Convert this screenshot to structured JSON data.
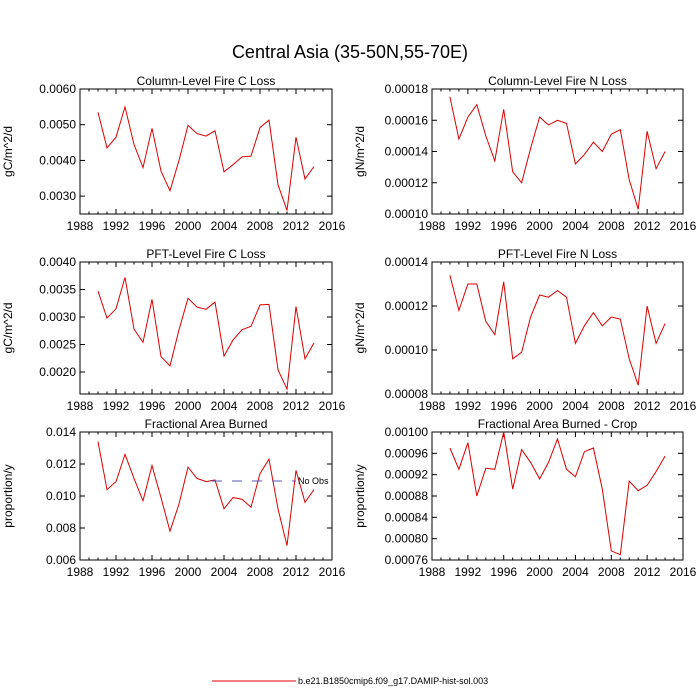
{
  "figure": {
    "title": "Central Asia (35-50N,55-70E)"
  },
  "legend": {
    "entries": [
      {
        "label": "No Obs",
        "style": "dashed",
        "color": "#5555bb"
      },
      {
        "label": "b.e21.B1850cmip6.f09_g17.DAMIP-hist-sol.003",
        "style": "solid",
        "color": "#dd0000"
      }
    ]
  },
  "chart_data": [
    {
      "type": "line",
      "title": "Column-Level Fire C Loss",
      "ylabel": "gC/m^2/d",
      "xlim": [
        1988,
        2016
      ],
      "ylim": [
        0.0025,
        0.006
      ],
      "xticks": [
        "1988",
        "1992",
        "1996",
        "2000",
        "2004",
        "2008",
        "2012",
        "2016"
      ],
      "yticks": [
        "0.0030",
        "0.0040",
        "0.0050",
        "0.0060"
      ],
      "ytick_values": [
        0.003,
        0.004,
        0.005,
        0.006
      ],
      "series": [
        {
          "color": "#dd0000",
          "x": [
            1990,
            1991,
            1992,
            1993,
            1994,
            1995,
            1996,
            1997,
            1998,
            1999,
            2000,
            2001,
            2002,
            2003,
            2004,
            2005,
            2006,
            2007,
            2008,
            2009,
            2010,
            2011,
            2012,
            2013,
            2014
          ],
          "values": [
            0.00535,
            0.00435,
            0.00465,
            0.0055,
            0.00445,
            0.0038,
            0.0049,
            0.0037,
            0.00315,
            0.004,
            0.00498,
            0.00475,
            0.00468,
            0.00483,
            0.00368,
            0.00388,
            0.0041,
            0.00412,
            0.00492,
            0.00513,
            0.00332,
            0.0026,
            0.00465,
            0.00348,
            0.00383
          ]
        }
      ]
    },
    {
      "type": "line",
      "title": "Column-Level Fire N Loss",
      "ylabel": "gN/m^2/d",
      "xlim": [
        1988,
        2016
      ],
      "ylim": [
        0.0001,
        0.00018
      ],
      "xticks": [
        "1988",
        "1992",
        "1996",
        "2000",
        "2004",
        "2008",
        "2012",
        "2016"
      ],
      "yticks": [
        "0.00010",
        "0.00012",
        "0.00014",
        "0.00016",
        "0.00018"
      ],
      "ytick_values": [
        0.0001,
        0.00012,
        0.00014,
        0.00016,
        0.00018
      ],
      "series": [
        {
          "color": "#dd0000",
          "x": [
            1990,
            1991,
            1992,
            1993,
            1994,
            1995,
            1996,
            1997,
            1998,
            1999,
            2000,
            2001,
            2002,
            2003,
            2004,
            2005,
            2006,
            2007,
            2008,
            2009,
            2010,
            2011,
            2012,
            2013,
            2014
          ],
          "values": [
            0.000175,
            0.000148,
            0.000162,
            0.00017,
            0.00015,
            0.000134,
            0.000167,
            0.000127,
            0.00012,
            0.000142,
            0.000162,
            0.000157,
            0.00016,
            0.000158,
            0.000132,
            0.000138,
            0.000146,
            0.00014,
            0.000151,
            0.000154,
            0.000122,
            0.000103,
            0.000153,
            0.000129,
            0.00014
          ]
        }
      ]
    },
    {
      "type": "line",
      "title": "PFT-Level Fire C Loss",
      "ylabel": "gC/m^2/d",
      "xlim": [
        1988,
        2016
      ],
      "ylim": [
        0.0016,
        0.004
      ],
      "xticks": [
        "1988",
        "1992",
        "1996",
        "2000",
        "2004",
        "2008",
        "2012",
        "2016"
      ],
      "yticks": [
        "0.0020",
        "0.0025",
        "0.0030",
        "0.0035",
        "0.0040"
      ],
      "ytick_values": [
        0.002,
        0.0025,
        0.003,
        0.0035,
        0.004
      ],
      "series": [
        {
          "color": "#dd0000",
          "x": [
            1990,
            1991,
            1992,
            1993,
            1994,
            1995,
            1996,
            1997,
            1998,
            1999,
            2000,
            2001,
            2002,
            2003,
            2004,
            2005,
            2006,
            2007,
            2008,
            2009,
            2010,
            2011,
            2012,
            2013,
            2014
          ],
          "values": [
            0.00347,
            0.00298,
            0.00315,
            0.00372,
            0.00278,
            0.00254,
            0.00332,
            0.00228,
            0.00211,
            0.00277,
            0.00334,
            0.00318,
            0.00314,
            0.00327,
            0.00229,
            0.00258,
            0.00277,
            0.00283,
            0.00322,
            0.00323,
            0.00204,
            0.00169,
            0.00319,
            0.00224,
            0.00253
          ]
        }
      ]
    },
    {
      "type": "line",
      "title": "PFT-Level Fire N Loss",
      "ylabel": "gN/m^2/d",
      "xlim": [
        1988,
        2016
      ],
      "ylim": [
        8e-05,
        0.00014
      ],
      "xticks": [
        "1988",
        "1992",
        "1996",
        "2000",
        "2004",
        "2008",
        "2012",
        "2016"
      ],
      "yticks": [
        "0.00008",
        "0.00010",
        "0.00012",
        "0.00014"
      ],
      "ytick_values": [
        8e-05,
        0.0001,
        0.00012,
        0.00014
      ],
      "series": [
        {
          "color": "#dd0000",
          "x": [
            1990,
            1991,
            1992,
            1993,
            1994,
            1995,
            1996,
            1997,
            1998,
            1999,
            2000,
            2001,
            2002,
            2003,
            2004,
            2005,
            2006,
            2007,
            2008,
            2009,
            2010,
            2011,
            2012,
            2013,
            2014
          ],
          "values": [
            0.000134,
            0.000118,
            0.00013,
            0.00013,
            0.000113,
            0.000107,
            0.000131,
            9.6e-05,
            9.9e-05,
            0.000115,
            0.000125,
            0.000124,
            0.000127,
            0.000124,
            0.000103,
            0.000111,
            0.000117,
            0.000111,
            0.000115,
            0.000114,
            9.6e-05,
            8.4e-05,
            0.00012,
            0.000103,
            0.000112
          ]
        }
      ]
    },
    {
      "type": "line",
      "title": "Fractional Area Burned",
      "ylabel": "proportion/y",
      "xlim": [
        1988,
        2016
      ],
      "ylim": [
        0.006,
        0.014
      ],
      "xticks": [
        "1988",
        "1992",
        "1996",
        "2000",
        "2004",
        "2008",
        "2012",
        "2016"
      ],
      "yticks": [
        "0.006",
        "0.008",
        "0.010",
        "0.012",
        "0.014"
      ],
      "ytick_values": [
        0.006,
        0.008,
        0.01,
        0.012,
        0.014
      ],
      "series": [
        {
          "color": "#dd0000",
          "x": [
            1990,
            1991,
            1992,
            1993,
            1994,
            1995,
            1996,
            1997,
            1998,
            1999,
            2000,
            2001,
            2002,
            2003,
            2004,
            2005,
            2006,
            2007,
            2008,
            2009,
            2010,
            2011,
            2012,
            2013,
            2014
          ],
          "values": [
            0.0134,
            0.0104,
            0.0109,
            0.0126,
            0.0111,
            0.0097,
            0.0119,
            0.0099,
            0.0078,
            0.0095,
            0.0118,
            0.0111,
            0.0109,
            0.011,
            0.0092,
            0.0099,
            0.0098,
            0.0093,
            0.0114,
            0.0123,
            0.0092,
            0.0069,
            0.0116,
            0.0096,
            0.0104
          ]
        }
      ]
    },
    {
      "type": "line",
      "title": "Fractional Area Burned - Crop",
      "ylabel": "proportion/y",
      "xlim": [
        1988,
        2016
      ],
      "ylim": [
        0.00076,
        0.001
      ],
      "xticks": [
        "1988",
        "1992",
        "1996",
        "2000",
        "2004",
        "2008",
        "2012",
        "2016"
      ],
      "yticks": [
        "0.00076",
        "0.00080",
        "0.00084",
        "0.00088",
        "0.00092",
        "0.00096",
        "0.00100"
      ],
      "ytick_values": [
        0.00076,
        0.0008,
        0.00084,
        0.00088,
        0.00092,
        0.00096,
        0.001
      ],
      "series": [
        {
          "color": "#dd0000",
          "x": [
            1990,
            1991,
            1992,
            1993,
            1994,
            1995,
            1996,
            1997,
            1998,
            1999,
            2000,
            2001,
            2002,
            2003,
            2004,
            2005,
            2006,
            2007,
            2008,
            2009,
            2010,
            2011,
            2012,
            2013,
            2014
          ],
          "values": [
            0.00097,
            0.00093,
            0.00098,
            0.00088,
            0.000932,
            0.00093,
            0.001,
            0.000893,
            0.000967,
            0.000943,
            0.000912,
            0.000943,
            0.000987,
            0.00093,
            0.000916,
            0.000963,
            0.00097,
            0.000893,
            0.000777,
            0.00077,
            0.000908,
            0.00089,
            0.0009,
            0.000926,
            0.000955
          ]
        }
      ]
    }
  ]
}
